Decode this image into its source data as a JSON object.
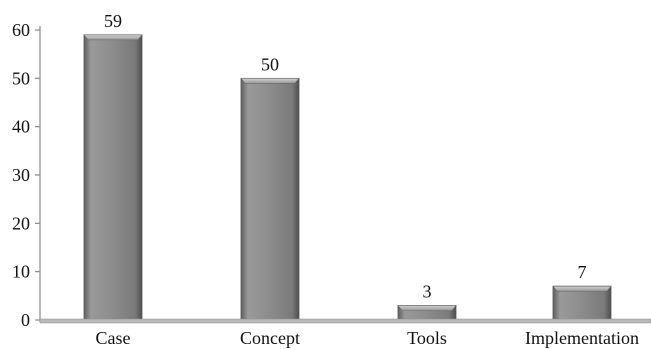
{
  "chart_data": {
    "type": "bar",
    "title": "",
    "xlabel": "",
    "ylabel": "",
    "categories": [
      "Case",
      "Concept",
      "Tools",
      "Implementation"
    ],
    "values": [
      59,
      50,
      3,
      7
    ],
    "value_labels": [
      "59",
      "50",
      "3",
      "7"
    ],
    "ylim": [
      0,
      60
    ],
    "yticks": [
      0,
      10,
      20,
      30,
      40,
      50,
      60
    ],
    "ytick_labels": [
      "0",
      "10",
      "20",
      "30",
      "40",
      "50",
      "60"
    ],
    "grid": false,
    "legend": "none",
    "colors": {
      "bar": "#8e8e8e",
      "bar_dark": "#5f5f5f",
      "bar_light": "#c4c4c4",
      "axis": "#8a8a8a",
      "text": "#111111"
    }
  }
}
